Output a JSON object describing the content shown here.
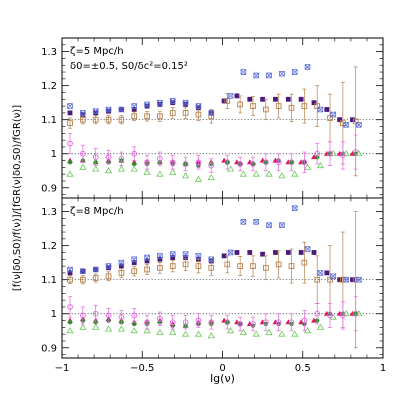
{
  "chart_data": [
    {
      "type": "scatter",
      "panel": "top",
      "annotation_lines": [
        "ζ=5 Mpc/h",
        "δ0=±0.5, S0/δc²=0.15²"
      ],
      "xlim": [
        -1,
        1
      ],
      "ylim": [
        0.87,
        1.34
      ],
      "xticks": [
        -1,
        -0.5,
        0,
        0.5,
        1
      ],
      "xtick_labels": [
        "−1",
        "−0.5",
        "0",
        "0.5",
        "1"
      ],
      "yticks": [
        0.9,
        1.0,
        1.1,
        1.2,
        1.3
      ],
      "ytick_labels": [
        "0.9",
        "1",
        "1.1",
        "1.2",
        "1.3"
      ],
      "reference_lines": [
        1.0,
        1.1
      ],
      "series": [
        {
          "marker": "filled-square",
          "color": "#4b1a7a",
          "x": [
            -0.95,
            -0.87,
            -0.79,
            -0.71,
            -0.63,
            -0.55,
            -0.47,
            -0.39,
            -0.31,
            -0.23,
            -0.15,
            -0.07,
            0.01,
            0.09,
            0.17,
            0.25,
            0.33,
            0.41,
            0.49,
            0.57,
            0.65,
            0.73,
            0.81
          ],
          "y": [
            1.12,
            1.115,
            1.12,
            1.125,
            1.13,
            1.13,
            1.14,
            1.145,
            1.15,
            1.145,
            1.135,
            1.12,
            1.155,
            1.17,
            1.16,
            1.16,
            1.16,
            1.16,
            1.16,
            1.15,
            1.13,
            1.1,
            1.1
          ]
        },
        {
          "marker": "open-square",
          "color": "#b5804d",
          "x": [
            -0.95,
            -0.87,
            -0.79,
            -0.71,
            -0.63,
            -0.55,
            -0.47,
            -0.39,
            -0.31,
            -0.23,
            -0.15,
            -0.07,
            0.03,
            0.11,
            0.19,
            0.27,
            0.35,
            0.43,
            0.51,
            0.59,
            0.67,
            0.75,
            0.83
          ],
          "y": [
            1.09,
            1.1,
            1.1,
            1.1,
            1.1,
            1.11,
            1.11,
            1.11,
            1.12,
            1.12,
            1.115,
            1.11,
            1.155,
            1.145,
            1.14,
            1.13,
            1.14,
            1.135,
            1.14,
            1.14,
            1.105,
            1.09,
            1.095
          ],
          "yerr": [
            0.015,
            0.012,
            0.012,
            0.012,
            0.012,
            0.013,
            0.014,
            0.015,
            0.016,
            0.017,
            0.018,
            0.02,
            0.022,
            0.025,
            0.028,
            0.03,
            0.035,
            0.04,
            0.05,
            0.06,
            0.07,
            0.12,
            0.16
          ]
        },
        {
          "marker": "cross-box",
          "color": "#5c6fd9",
          "x": [
            -0.95,
            -0.87,
            -0.79,
            -0.71,
            -0.63,
            -0.55,
            -0.47,
            -0.39,
            -0.31,
            -0.23,
            -0.15,
            -0.07,
            0.05,
            0.13,
            0.21,
            0.29,
            0.37,
            0.45,
            0.53,
            0.61,
            0.69,
            0.77,
            0.85
          ],
          "y": [
            1.14,
            1.12,
            1.125,
            1.13,
            1.13,
            1.14,
            1.145,
            1.15,
            1.155,
            1.15,
            1.14,
            1.12,
            1.17,
            1.24,
            1.23,
            1.23,
            1.235,
            1.24,
            1.255,
            1.13,
            1.115,
            1.085,
            1.085
          ]
        },
        {
          "marker": "filled-triangle",
          "color": "#e0115f",
          "x": [
            -0.95,
            -0.87,
            -0.79,
            -0.71,
            -0.63,
            -0.55,
            -0.47,
            -0.39,
            -0.31,
            -0.23,
            -0.15,
            -0.07,
            0.01,
            0.09,
            0.17,
            0.25,
            0.33,
            0.41,
            0.49,
            0.57,
            0.65,
            0.73,
            0.81
          ],
          "y": [
            0.98,
            0.98,
            0.975,
            0.98,
            0.98,
            0.975,
            0.975,
            0.975,
            0.975,
            0.97,
            0.975,
            0.975,
            0.98,
            0.975,
            0.975,
            0.98,
            0.98,
            0.975,
            0.975,
            0.99,
            1.0,
            1.0,
            1.0
          ]
        },
        {
          "marker": "filled-circle",
          "color": "#2e8b2e",
          "x": [
            -0.95,
            -0.87,
            -0.79,
            -0.71,
            -0.63,
            -0.55,
            -0.47,
            -0.39,
            -0.31,
            -0.23,
            -0.15,
            -0.07,
            0.03,
            0.11,
            0.19,
            0.27,
            0.35,
            0.43,
            0.51,
            0.59,
            0.67,
            0.75,
            0.83
          ],
          "y": [
            0.975,
            0.98,
            0.975,
            0.975,
            0.98,
            0.97,
            0.97,
            0.975,
            0.97,
            0.97,
            0.965,
            0.97,
            0.975,
            0.97,
            0.97,
            0.975,
            0.98,
            0.975,
            0.975,
            0.99,
            1.0,
            1.0,
            1.0
          ]
        },
        {
          "marker": "open-triangle",
          "color": "#66cc55",
          "x": [
            -0.95,
            -0.87,
            -0.79,
            -0.71,
            -0.63,
            -0.55,
            -0.47,
            -0.39,
            -0.31,
            -0.23,
            -0.15,
            -0.07,
            0.05,
            0.13,
            0.21,
            0.29,
            0.37,
            0.45,
            0.53,
            0.61,
            0.69,
            0.77,
            0.85
          ],
          "y": [
            0.94,
            0.96,
            0.955,
            0.95,
            0.955,
            0.955,
            0.945,
            0.94,
            0.945,
            0.935,
            0.925,
            0.93,
            0.955,
            0.94,
            0.94,
            0.94,
            0.935,
            0.94,
            0.96,
            0.965,
            1.0,
            1.0,
            1.0
          ]
        },
        {
          "marker": "open-circle",
          "color": "#e066e0",
          "x": [
            -0.95,
            -0.87,
            -0.79,
            -0.71,
            -0.63,
            -0.55,
            -0.47,
            -0.39,
            -0.31,
            -0.23,
            -0.15,
            -0.07,
            0.03,
            0.11,
            0.19,
            0.27,
            0.35,
            0.43,
            0.51,
            0.59,
            0.67,
            0.75,
            0.83
          ],
          "y": [
            1.03,
            1.0,
            0.99,
            0.99,
            0.985,
            1.0,
            0.975,
            0.985,
            0.975,
            0.97,
            0.975,
            0.965,
            0.975,
            0.97,
            0.97,
            0.975,
            0.975,
            0.975,
            0.975,
            1.0,
            1.0,
            0.995,
            1.005
          ],
          "yerr": [
            0.03,
            0.025,
            0.025,
            0.02,
            0.02,
            0.02,
            0.02,
            0.02,
            0.02,
            0.02,
            0.02,
            0.02,
            0.02,
            0.02,
            0.02,
            0.025,
            0.025,
            0.025,
            0.03,
            0.03,
            0.035,
            0.04,
            0.05
          ]
        }
      ]
    },
    {
      "type": "scatter",
      "panel": "bottom",
      "annotation_lines": [
        "ζ=8 Mpc/h"
      ],
      "xlabel": "lg(ν)",
      "ylabel": "[f(ν|δ0,S0)/f(ν)]/[fGR(ν|δ0,S0)/fGR(ν)]",
      "xlim": [
        -1,
        1
      ],
      "ylim": [
        0.87,
        1.34
      ],
      "xticks": [
        -1,
        -0.5,
        0,
        0.5,
        1
      ],
      "xtick_labels": [
        "−1",
        "−0.5",
        "0",
        "0.5",
        "1"
      ],
      "yticks": [
        0.9,
        1.0,
        1.1,
        1.2,
        1.3
      ],
      "ytick_labels": [
        "0.9",
        "1",
        "1.1",
        "1.2",
        "1.3"
      ],
      "reference_lines": [
        1.0,
        1.1
      ],
      "series": [
        {
          "marker": "filled-square",
          "color": "#4b1a7a",
          "x": [
            -0.95,
            -0.87,
            -0.79,
            -0.71,
            -0.63,
            -0.55,
            -0.47,
            -0.39,
            -0.31,
            -0.23,
            -0.15,
            -0.07,
            0.01,
            0.09,
            0.17,
            0.25,
            0.33,
            0.41,
            0.49,
            0.57,
            0.65,
            0.73,
            0.81
          ],
          "y": [
            1.12,
            1.125,
            1.13,
            1.135,
            1.14,
            1.15,
            1.155,
            1.16,
            1.165,
            1.165,
            1.16,
            1.155,
            1.17,
            1.18,
            1.18,
            1.175,
            1.18,
            1.18,
            1.18,
            1.18,
            1.12,
            1.1,
            1.1
          ]
        },
        {
          "marker": "open-square",
          "color": "#b5804d",
          "x": [
            -0.95,
            -0.87,
            -0.79,
            -0.71,
            -0.63,
            -0.55,
            -0.47,
            -0.39,
            -0.31,
            -0.23,
            -0.15,
            -0.07,
            0.03,
            0.11,
            0.19,
            0.27,
            0.35,
            0.43,
            0.51,
            0.59,
            0.67,
            0.75,
            0.83
          ],
          "y": [
            1.1,
            1.1,
            1.105,
            1.11,
            1.12,
            1.125,
            1.13,
            1.135,
            1.14,
            1.145,
            1.14,
            1.135,
            1.145,
            1.14,
            1.14,
            1.135,
            1.145,
            1.14,
            1.15,
            1.1,
            1.1,
            1.1,
            1.1
          ],
          "yerr": [
            0.012,
            0.012,
            0.012,
            0.013,
            0.013,
            0.014,
            0.015,
            0.016,
            0.017,
            0.018,
            0.02,
            0.022,
            0.025,
            0.028,
            0.03,
            0.035,
            0.04,
            0.05,
            0.06,
            0.07,
            0.1,
            0.14,
            0.2
          ]
        },
        {
          "marker": "cross-box",
          "color": "#5c6fd9",
          "x": [
            -0.95,
            -0.87,
            -0.79,
            -0.71,
            -0.63,
            -0.55,
            -0.47,
            -0.39,
            -0.31,
            -0.23,
            -0.15,
            -0.07,
            0.05,
            0.13,
            0.21,
            0.29,
            0.37,
            0.45,
            0.53,
            0.61,
            0.69,
            0.77,
            0.85
          ],
          "y": [
            1.13,
            1.125,
            1.13,
            1.14,
            1.15,
            1.16,
            1.165,
            1.17,
            1.175,
            1.175,
            1.17,
            1.16,
            1.18,
            1.27,
            1.27,
            1.26,
            1.26,
            1.31,
            1.19,
            1.12,
            1.11,
            1.1,
            1.1
          ]
        },
        {
          "marker": "filled-triangle",
          "color": "#e0115f",
          "x": [
            -0.95,
            -0.87,
            -0.79,
            -0.71,
            -0.63,
            -0.55,
            -0.47,
            -0.39,
            -0.31,
            -0.23,
            -0.15,
            -0.07,
            0.01,
            0.09,
            0.17,
            0.25,
            0.33,
            0.41,
            0.49,
            0.57,
            0.65,
            0.73,
            0.81
          ],
          "y": [
            0.98,
            0.985,
            0.98,
            0.985,
            0.98,
            0.975,
            0.975,
            0.98,
            0.97,
            0.965,
            0.975,
            0.975,
            0.98,
            0.975,
            0.97,
            0.975,
            0.975,
            0.975,
            0.975,
            0.98,
            1.0,
            1.0,
            1.0
          ]
        },
        {
          "marker": "filled-circle",
          "color": "#2e8b2e",
          "x": [
            -0.95,
            -0.87,
            -0.79,
            -0.71,
            -0.63,
            -0.55,
            -0.47,
            -0.39,
            -0.31,
            -0.23,
            -0.15,
            -0.07,
            0.03,
            0.11,
            0.19,
            0.27,
            0.35,
            0.43,
            0.51,
            0.59,
            0.67,
            0.75,
            0.83
          ],
          "y": [
            0.975,
            0.98,
            0.975,
            0.98,
            0.975,
            0.97,
            0.97,
            0.975,
            0.965,
            0.965,
            0.97,
            0.97,
            0.975,
            0.97,
            0.965,
            0.97,
            0.97,
            0.97,
            0.97,
            0.98,
            1.0,
            1.0,
            1.0
          ]
        },
        {
          "marker": "open-triangle",
          "color": "#66cc55",
          "x": [
            -0.95,
            -0.87,
            -0.79,
            -0.71,
            -0.63,
            -0.55,
            -0.47,
            -0.39,
            -0.31,
            -0.23,
            -0.15,
            -0.07,
            0.05,
            0.13,
            0.21,
            0.29,
            0.37,
            0.45,
            0.53,
            0.61,
            0.69,
            0.77,
            0.85
          ],
          "y": [
            0.95,
            0.96,
            0.96,
            0.955,
            0.955,
            0.95,
            0.95,
            0.945,
            0.945,
            0.94,
            0.94,
            0.935,
            0.95,
            0.945,
            0.94,
            0.945,
            0.94,
            0.94,
            0.95,
            0.96,
            0.99,
            1.0,
            1.0
          ]
        },
        {
          "marker": "open-circle",
          "color": "#e066e0",
          "x": [
            -0.95,
            -0.87,
            -0.79,
            -0.71,
            -0.63,
            -0.55,
            -0.47,
            -0.39,
            -0.31,
            -0.23,
            -0.15,
            -0.07,
            0.03,
            0.11,
            0.19,
            0.27,
            0.35,
            0.43,
            0.51,
            0.59,
            0.67,
            0.75,
            0.83
          ],
          "y": [
            1.02,
            0.995,
            1.0,
            0.995,
            0.99,
            0.995,
            0.975,
            0.985,
            0.975,
            0.975,
            0.98,
            0.975,
            0.975,
            0.97,
            0.97,
            0.975,
            0.975,
            0.975,
            0.98,
            1.0,
            0.995,
            0.995,
            1.0
          ],
          "yerr": [
            0.03,
            0.025,
            0.025,
            0.02,
            0.02,
            0.02,
            0.02,
            0.02,
            0.02,
            0.02,
            0.02,
            0.02,
            0.02,
            0.02,
            0.02,
            0.025,
            0.025,
            0.025,
            0.03,
            0.03,
            0.035,
            0.04,
            0.05
          ]
        }
      ]
    }
  ]
}
